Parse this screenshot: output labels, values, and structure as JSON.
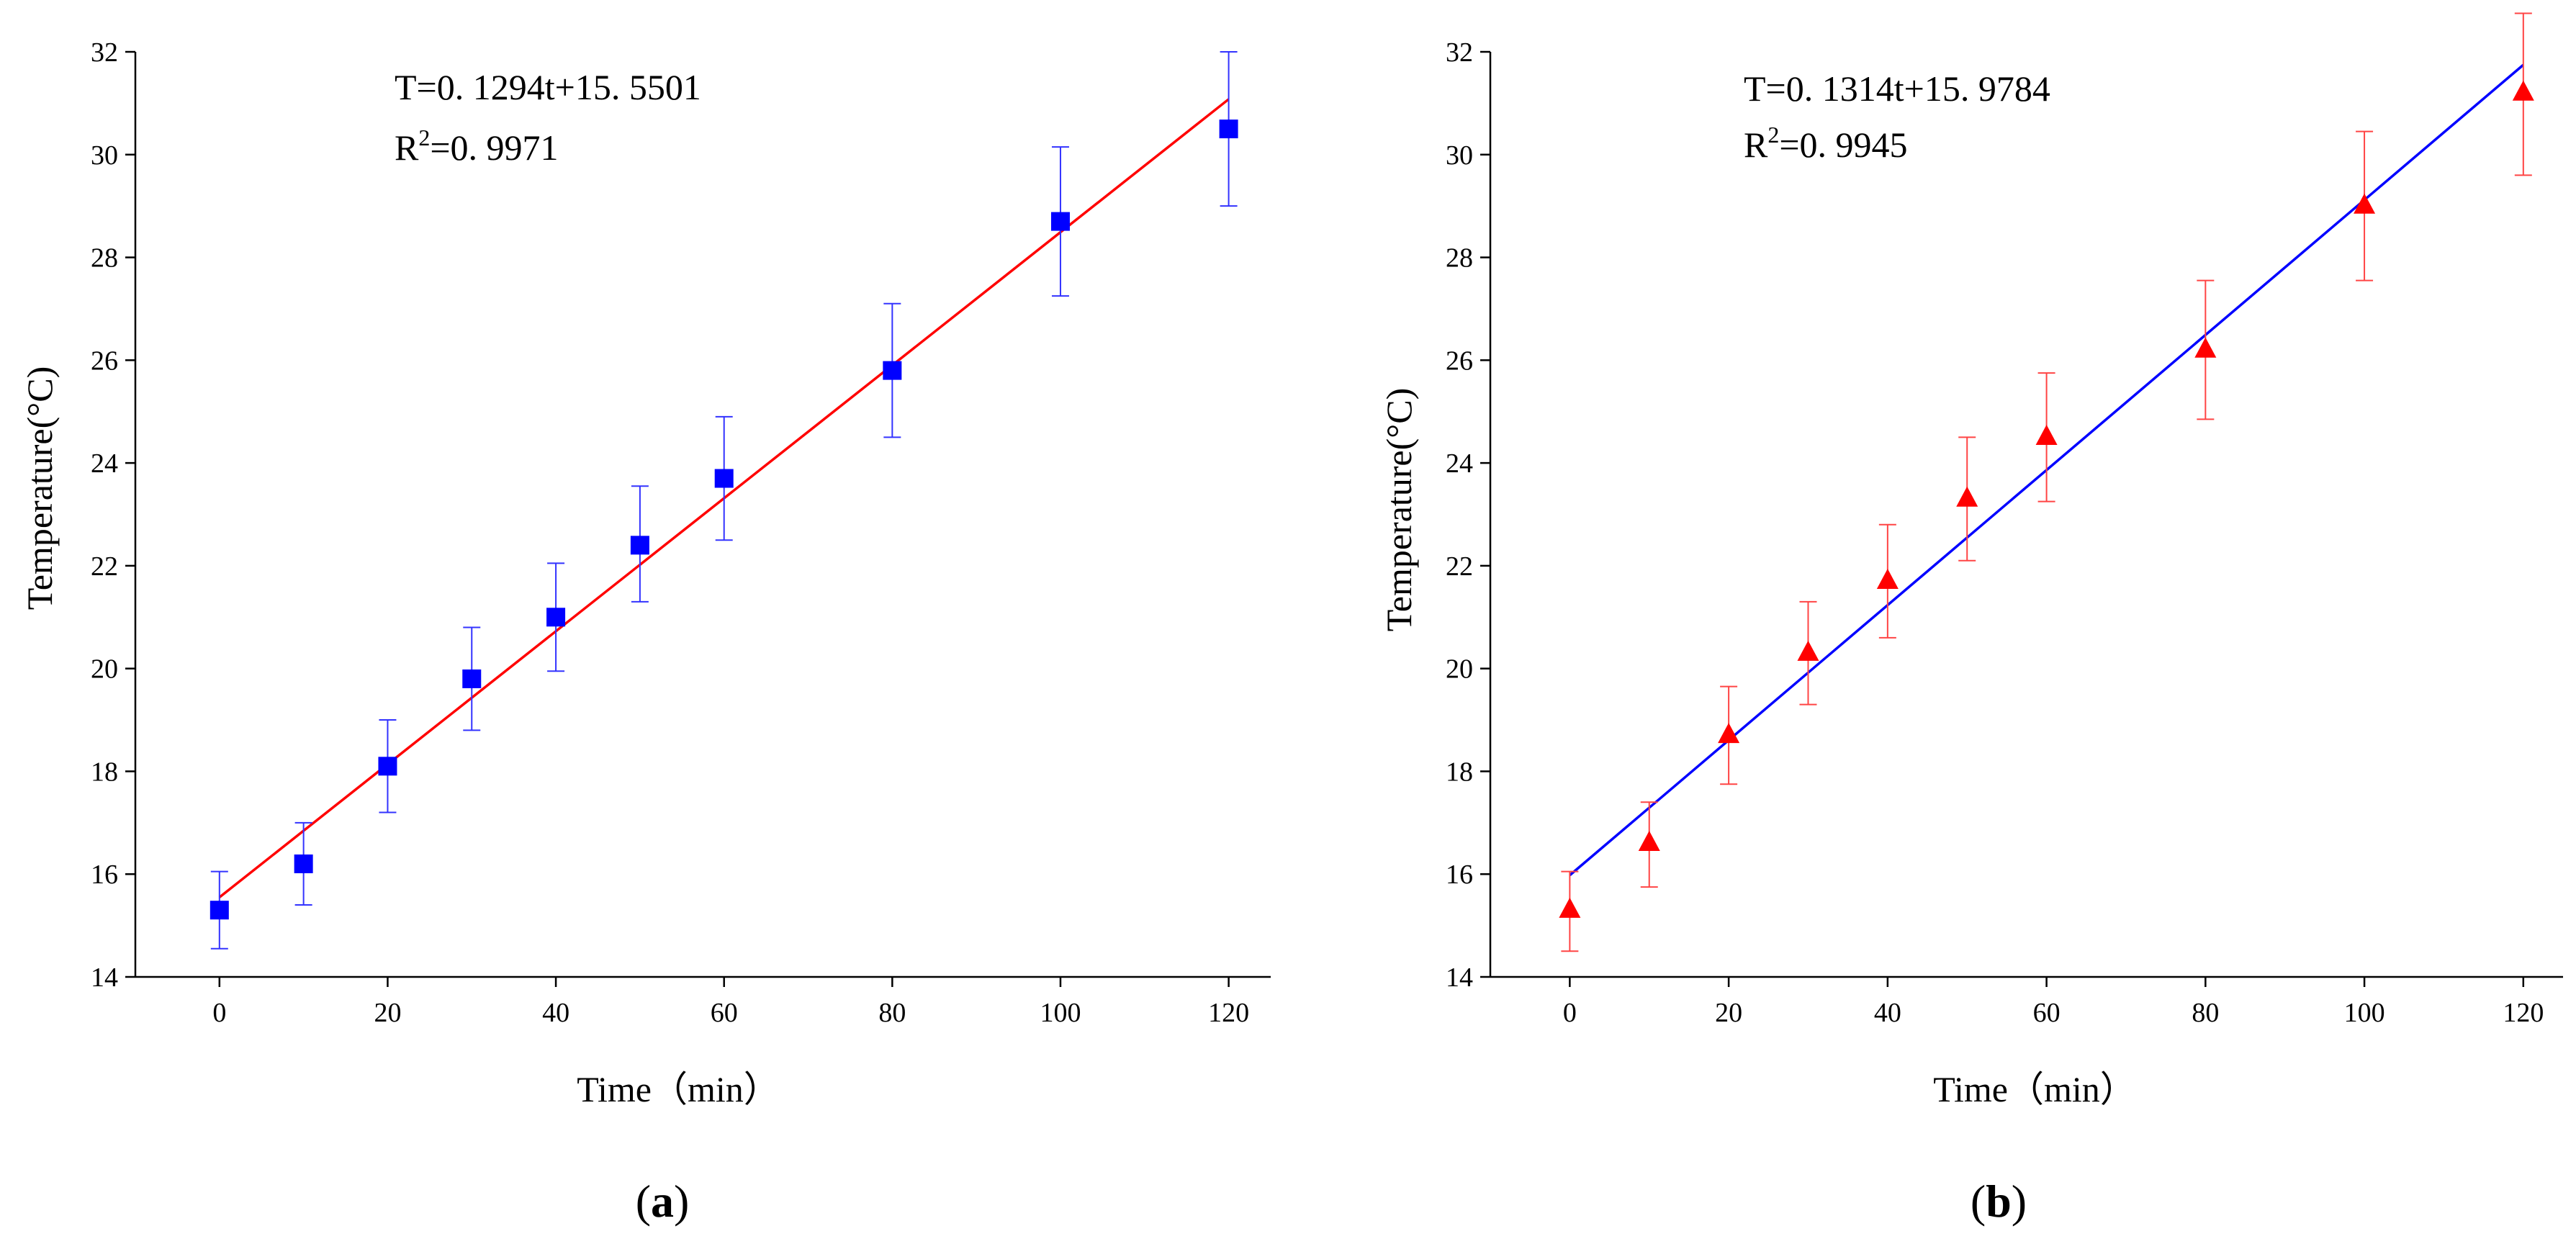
{
  "chart_data": [
    {
      "type": "scatter",
      "panel": "a",
      "panel_label": "a",
      "xlabel": "Time（min）",
      "ylabel": "Temperature(°C)",
      "xlim": [
        -10,
        125
      ],
      "ylim": [
        14,
        32
      ],
      "xticks": [
        0,
        20,
        40,
        60,
        80,
        100,
        120
      ],
      "yticks": [
        14,
        16,
        18,
        20,
        22,
        24,
        26,
        28,
        30,
        32
      ],
      "marker": "square",
      "marker_color": "#0000ff",
      "errorbar_color": "#3333ff",
      "fit_color": "#ff0000",
      "equation": "T=0. 1294t+15. 5501",
      "r2_prefix": "R",
      "r2_sup": "2",
      "r2_value": "=0. 9971",
      "fit": {
        "slope": 0.1294,
        "intercept": 15.5501
      },
      "x": [
        0,
        10,
        20,
        30,
        40,
        50,
        60,
        80,
        100,
        120
      ],
      "y": [
        15.3,
        16.2,
        18.1,
        19.8,
        21.0,
        22.4,
        23.7,
        25.8,
        28.7,
        30.5
      ],
      "err_low": [
        14.55,
        15.4,
        17.2,
        18.8,
        19.95,
        21.3,
        22.5,
        24.5,
        27.25,
        29.0
      ],
      "err_high": [
        16.05,
        17.0,
        19.0,
        20.8,
        22.05,
        23.55,
        24.9,
        27.1,
        30.15,
        32.0
      ]
    },
    {
      "type": "scatter",
      "panel": "b",
      "panel_label": "b",
      "xlabel": "Time（min）",
      "ylabel": "Temperature(°C)",
      "xlim": [
        -10,
        125
      ],
      "ylim": [
        14,
        32
      ],
      "xticks": [
        0,
        20,
        40,
        60,
        80,
        100,
        120
      ],
      "yticks": [
        14,
        16,
        18,
        20,
        22,
        24,
        26,
        28,
        30,
        32
      ],
      "marker": "triangle",
      "marker_color": "#ff0000",
      "errorbar_color": "#ff4444",
      "fit_color": "#0000ff",
      "equation": "T=0. 1314t+15. 9784",
      "r2_prefix": "R",
      "r2_sup": "2",
      "r2_value": "=0. 9945",
      "fit": {
        "slope": 0.1314,
        "intercept": 15.9784
      },
      "x": [
        0,
        10,
        20,
        30,
        40,
        50,
        60,
        80,
        100,
        120
      ],
      "y": [
        15.3,
        16.6,
        18.7,
        20.3,
        21.7,
        23.3,
        24.5,
        26.2,
        29.0,
        31.2
      ],
      "err_low": [
        14.5,
        15.75,
        17.75,
        19.3,
        20.6,
        22.1,
        23.25,
        24.85,
        27.55,
        29.6
      ],
      "err_high": [
        16.05,
        17.4,
        19.65,
        21.3,
        22.8,
        24.5,
        25.75,
        27.55,
        30.45,
        32.75
      ]
    }
  ]
}
